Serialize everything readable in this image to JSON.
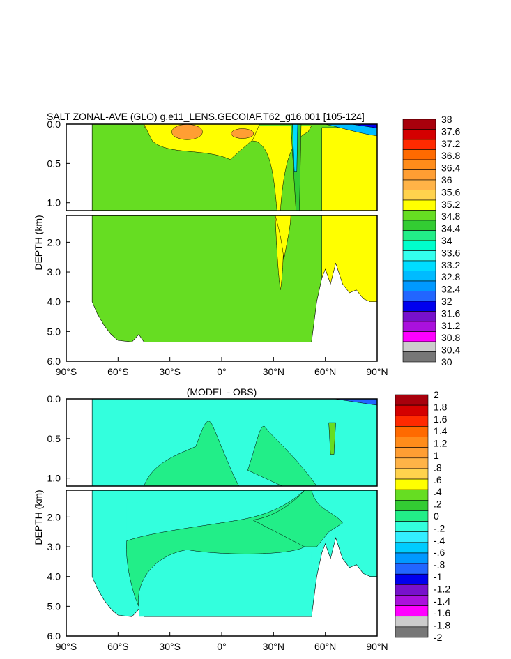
{
  "chart_data": [
    {
      "type": "heatmap",
      "title": "SALT ZONAL-AVE (GLO) g.e11_LENS.GECOIAF.T62_g16.001 [105-124]",
      "ylabel": "DEPTH (km)",
      "x_ticks": [
        {
          "value": -90,
          "label": "90°S"
        },
        {
          "value": -60,
          "label": "60°S"
        },
        {
          "value": -30,
          "label": "30°S"
        },
        {
          "value": 0,
          "label": "0°"
        },
        {
          "value": 30,
          "label": "30°N"
        },
        {
          "value": 60,
          "label": "60°N"
        },
        {
          "value": 90,
          "label": "90°N"
        }
      ],
      "xlim": [
        -90,
        90
      ],
      "y_upper_ticks": [
        "0.0",
        "0.5",
        "1.0"
      ],
      "y_upper_range": [
        0,
        1.1
      ],
      "y_lower_ticks": [
        "2.0",
        "3.0",
        "4.0",
        "5.0",
        "6.0"
      ],
      "y_lower_range": [
        1.1,
        6.0
      ],
      "colorbar_labels": [
        "38",
        "37.6",
        "37.2",
        "36.8",
        "36.4",
        "36",
        "35.6",
        "35.2",
        "34.8",
        "34.4",
        "34",
        "33.6",
        "33.2",
        "32.8",
        "32.4",
        "32",
        "31.6",
        "31.2",
        "30.8",
        "30.4",
        "30"
      ],
      "colorbar_colors": [
        "#a8000c",
        "#d40000",
        "#ff2a00",
        "#ff6a00",
        "#ff8c1a",
        "#ff9e33",
        "#ffb347",
        "#ffd24d",
        "#ffff00",
        "#66dd22",
        "#33cc33",
        "#22ee88",
        "#00ffcc",
        "#33ffee",
        "#00ddff",
        "#00bbff",
        "#0099ff",
        "#2266ff",
        "#0000ee",
        "#7711cc",
        "#aa11dd",
        "#ff00ff",
        "#cccccc",
        "#777777"
      ],
      "field": {
        "background": "#66dd22",
        "regions": [
          {
            "name": "subtropical-south-high-salinity",
            "value": 35.2,
            "color": "#ffff00"
          },
          {
            "name": "south-core-max",
            "value": 35.6,
            "color": "#ff9e33"
          },
          {
            "name": "mediterranean-outflow-tongue",
            "value": 35.2,
            "color": "#ffff00"
          },
          {
            "name": "arctic-atlantic-deep",
            "value": 35.2,
            "color": "#ffff00"
          },
          {
            "name": "north-pacific-low-salinity",
            "value": 34.0,
            "color": "#33cc33"
          },
          {
            "name": "arctic-surface-fresh",
            "value": 32.0,
            "color": "#0000ee"
          }
        ]
      }
    },
    {
      "type": "heatmap",
      "title": "(MODEL - OBS)",
      "ylabel": "DEPTH (km)",
      "x_ticks": [
        {
          "value": -90,
          "label": "90°S"
        },
        {
          "value": -60,
          "label": "60°S"
        },
        {
          "value": -30,
          "label": "30°S"
        },
        {
          "value": 0,
          "label": "0°"
        },
        {
          "value": 30,
          "label": "30°N"
        },
        {
          "value": 60,
          "label": "60°N"
        },
        {
          "value": 90,
          "label": "90°N"
        }
      ],
      "xlim": [
        -90,
        90
      ],
      "y_upper_ticks": [
        "0.0",
        "0.5",
        "1.0"
      ],
      "y_upper_range": [
        0,
        1.1
      ],
      "y_lower_ticks": [
        "2.0",
        "3.0",
        "4.0",
        "5.0",
        "6.0"
      ],
      "y_lower_range": [
        1.1,
        6.0
      ],
      "colorbar_labels": [
        "2",
        "1.8",
        "1.6",
        "1.4",
        "1.2",
        "1",
        ".8",
        ".6",
        ".4",
        ".2",
        "0",
        "-.2",
        "-.4",
        "-.6",
        "-.8",
        "-1",
        "-1.2",
        "-1.4",
        "-1.6",
        "-1.8",
        "-2"
      ],
      "colorbar_colors": [
        "#a8000c",
        "#d40000",
        "#ff2a00",
        "#ff6a00",
        "#ff8c1a",
        "#ff9e33",
        "#ffb347",
        "#ffd24d",
        "#ffff00",
        "#66dd22",
        "#33cc33",
        "#22ee88",
        "#33ffdd",
        "#33eeff",
        "#00ccff",
        "#0099ff",
        "#2266ff",
        "#0000ee",
        "#7711cc",
        "#aa11dd",
        "#ff00ff",
        "#cccccc",
        "#777777"
      ],
      "field": {
        "background": "#33ffdd",
        "regions": [
          {
            "name": "positive-anomaly-mid-latitudes",
            "value": 0.0,
            "color": "#22ee88"
          },
          {
            "name": "arctic-surface-anomaly",
            "value": -0.8,
            "color": "#2266ff"
          }
        ]
      }
    }
  ]
}
